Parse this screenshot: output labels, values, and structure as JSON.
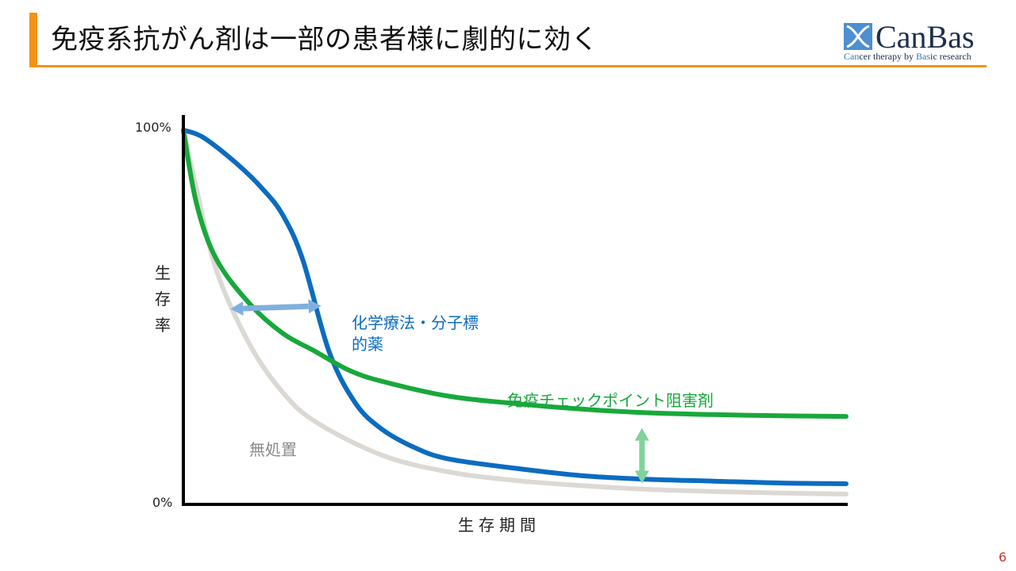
{
  "header": {
    "title": "免疫系抗がん剤は一部の患者様に劇的に効く",
    "accent_color": "#f39217"
  },
  "logo": {
    "name": "CanBas",
    "tag_parts": [
      "Can",
      "cer therapy by ",
      "Bas",
      "ic research"
    ],
    "icon": "canbas-logo-icon"
  },
  "page_number": "6",
  "chart_data": {
    "type": "line",
    "xlabel": "生存期間",
    "ylabel": "生存率",
    "ytick_labels": [
      "100%",
      "0%"
    ],
    "ylim": [
      0,
      100
    ],
    "xlim": [
      0,
      100
    ],
    "series": [
      {
        "name": "無処置",
        "color": "#dcd9d4",
        "x": [
          0,
          2,
          5,
          10,
          15,
          20,
          30,
          40,
          50,
          60,
          70,
          80,
          90,
          100
        ],
        "y": [
          100,
          84,
          62,
          42,
          29,
          21,
          12,
          7.5,
          5.2,
          3.8,
          2.8,
          2.2,
          1.8,
          1.5
        ]
      },
      {
        "name": "化学療法・分子標的薬",
        "color": "#0b6cc0",
        "x": [
          0,
          3,
          8,
          12,
          15,
          18,
          22,
          26,
          30,
          35,
          40,
          50,
          60,
          70,
          80,
          90,
          100
        ],
        "y": [
          100,
          98,
          91,
          84,
          77,
          65,
          40,
          26,
          19,
          14,
          11,
          8.5,
          6.5,
          5.5,
          5,
          4.5,
          4.3
        ]
      },
      {
        "name": "免疫チェックポイント阻害剤",
        "color": "#18a83c",
        "x": [
          0,
          2,
          5,
          10,
          15,
          20,
          25,
          30,
          40,
          50,
          60,
          70,
          80,
          90,
          100
        ],
        "y": [
          100,
          80,
          65,
          53,
          45,
          40,
          35,
          32,
          28,
          26,
          24.5,
          23.5,
          23,
          22.7,
          22.5
        ]
      }
    ],
    "annotations": [
      {
        "type": "double-arrow",
        "direction": "horizontal",
        "color": "#7fb0dd",
        "x": [
          7.1,
          20.8
        ],
        "y": [
          51.6,
          52.4
        ]
      },
      {
        "type": "double-arrow",
        "direction": "vertical",
        "color": "#7fd39a",
        "x": [
          69.2,
          69.2
        ],
        "y": [
          4.4,
          19.4
        ]
      }
    ]
  }
}
